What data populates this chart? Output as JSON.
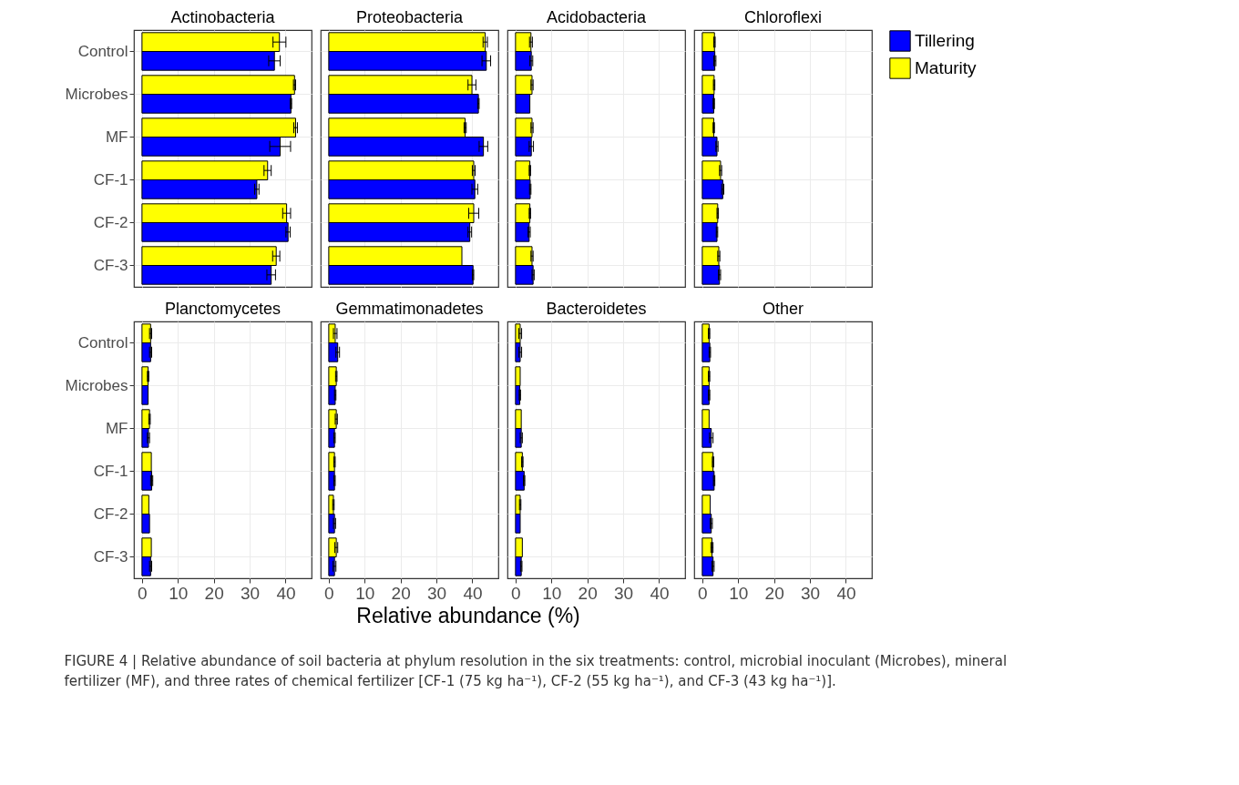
{
  "chart_data": [
    {
      "type": "bar",
      "orientation": "horizontal",
      "title": "Actinobacteria",
      "categories": [
        "Control",
        "Microbes",
        "MF",
        "CF-1",
        "CF-2",
        "CF-3"
      ],
      "xlim": [
        -2.25,
        47.25
      ],
      "xticks": [
        0,
        10,
        20,
        30,
        40
      ],
      "grid": true,
      "tick_labels": "y",
      "legend": "right",
      "annotations": [
        "FIGURE 4 | Relative abundance of soil bacteria at phylum resolution in the six treatments: control, microbial inoculant (Microbes), mineral fertilizer (MF), and three rates of chemical fertilizer [CF-1 (75 kg ha⁻¹), CF-2 (55 kg ha⁻¹), and CF-3 (43 kg ha⁻¹)]."
      ],
      "series": [
        {
          "name": "Tillering",
          "color": "#0000ff",
          "values": [
            36.9,
            41.5,
            38.5,
            32.0,
            40.7,
            36.0
          ],
          "errors": [
            1.6,
            0.2,
            2.9,
            0.6,
            0.6,
            1.2
          ]
        },
        {
          "name": "Maturity",
          "color": "#ffff00",
          "values": [
            38.3,
            42.5,
            42.8,
            35.0,
            40.3,
            37.4
          ],
          "errors": [
            1.8,
            0.3,
            0.5,
            1.0,
            1.1,
            1.0
          ]
        }
      ]
    },
    {
      "type": "bar",
      "orientation": "horizontal",
      "title": "Proteobacteria",
      "categories": [
        "Control",
        "Microbes",
        "MF",
        "CF-1",
        "CF-2",
        "CF-3"
      ],
      "xlim": [
        -2.25,
        47.25
      ],
      "xticks": [
        0,
        10,
        20,
        30,
        40
      ],
      "grid": true,
      "tick_labels": false,
      "legend": "right",
      "series": [
        {
          "name": "Tillering",
          "color": "#0000ff",
          "values": [
            43.9,
            41.7,
            43.1,
            40.7,
            39.3,
            40.2
          ],
          "errors": [
            1.2,
            0.2,
            1.2,
            0.8,
            0.5,
            0.2
          ]
        },
        {
          "name": "Maturity",
          "color": "#ffff00",
          "values": [
            43.6,
            39.9,
            38.0,
            40.4,
            40.4,
            37.1
          ],
          "errors": [
            0.6,
            1.1,
            0.3,
            0.4,
            1.4,
            null
          ]
        }
      ]
    },
    {
      "type": "bar",
      "orientation": "horizontal",
      "title": "Acidobacteria",
      "categories": [
        "Control",
        "Microbes",
        "MF",
        "CF-1",
        "CF-2",
        "CF-3"
      ],
      "xlim": [
        -2.25,
        47.25
      ],
      "xticks": [
        0,
        10,
        20,
        30,
        40
      ],
      "grid": true,
      "tick_labels": false,
      "legend": "right",
      "series": [
        {
          "name": "Tillering",
          "color": "#0000ff",
          "values": [
            4.4,
            4.0,
            4.4,
            4.1,
            3.8,
            4.9
          ],
          "errors": [
            0.4,
            null,
            0.6,
            0.2,
            0.3,
            0.3
          ]
        },
        {
          "name": "Maturity",
          "color": "#ffff00",
          "values": [
            4.3,
            4.6,
            4.6,
            4.0,
            4.0,
            4.6
          ],
          "errors": [
            0.4,
            0.3,
            0.3,
            0.2,
            0.2,
            0.3
          ]
        }
      ]
    },
    {
      "type": "bar",
      "orientation": "horizontal",
      "title": "Chloroflexi",
      "categories": [
        "Control",
        "Microbes",
        "MF",
        "CF-1",
        "CF-2",
        "CF-3"
      ],
      "xlim": [
        -2.25,
        47.25
      ],
      "xticks": [
        0,
        10,
        20,
        30,
        40
      ],
      "grid": true,
      "tick_labels": false,
      "legend": "right",
      "series": [
        {
          "name": "Tillering",
          "color": "#0000ff",
          "values": [
            3.5,
            3.2,
            4.1,
            5.7,
            4.1,
            4.8
          ],
          "errors": [
            0.3,
            0.2,
            0.3,
            0.3,
            0.2,
            0.3
          ]
        },
        {
          "name": "Maturity",
          "color": "#ffff00",
          "values": [
            3.4,
            3.3,
            3.2,
            5.1,
            4.3,
            4.6
          ],
          "errors": [
            0.2,
            0.2,
            0.2,
            0.3,
            0.2,
            0.3
          ]
        }
      ]
    },
    {
      "type": "bar",
      "orientation": "horizontal",
      "title": "Planctomycetes",
      "categories": [
        "Control",
        "Microbes",
        "MF",
        "CF-1",
        "CF-2",
        "CF-3"
      ],
      "xlim": [
        -2.25,
        47.25
      ],
      "xticks": [
        0,
        10,
        20,
        30,
        40
      ],
      "grid": true,
      "legend": "right",
      "series": [
        {
          "name": "Tillering",
          "color": "#0000ff",
          "values": [
            2.4,
            1.7,
            1.8,
            2.7,
            2.1,
            2.4
          ],
          "errors": [
            0.3,
            null,
            0.3,
            0.3,
            null,
            0.3
          ]
        },
        {
          "name": "Maturity",
          "color": "#ffff00",
          "values": [
            2.4,
            1.7,
            2.1,
            2.6,
            1.9,
            2.6
          ],
          "errors": [
            0.3,
            0.2,
            0.2,
            null,
            null,
            null
          ]
        }
      ]
    },
    {
      "type": "bar",
      "orientation": "horizontal",
      "title": "Gemmatimonadetes",
      "xlabel": "Relative abundance (%)",
      "categories": [
        "Control",
        "Microbes",
        "MF",
        "CF-1",
        "CF-2",
        "CF-3"
      ],
      "xlim": [
        -2.25,
        47.25
      ],
      "xticks": [
        0,
        10,
        20,
        30,
        40
      ],
      "grid": true,
      "tick_labels": "x",
      "legend": "right",
      "series": [
        {
          "name": "Tillering",
          "color": "#0000ff",
          "values": [
            2.5,
            1.8,
            1.6,
            1.6,
            1.6,
            1.6
          ],
          "errors": [
            0.5,
            0.2,
            0.2,
            0.2,
            0.3,
            0.4
          ]
        },
        {
          "name": "Maturity",
          "color": "#ffff00",
          "values": [
            1.8,
            2.1,
            2.1,
            1.6,
            1.3,
            2.1
          ],
          "errors": [
            0.5,
            0.2,
            0.3,
            0.2,
            0.2,
            0.4
          ]
        }
      ]
    },
    {
      "type": "bar",
      "orientation": "horizontal",
      "title": "Bacteroidetes",
      "categories": [
        "Control",
        "Microbes",
        "MF",
        "CF-1",
        "CF-2",
        "CF-3"
      ],
      "xlim": [
        -2.25,
        47.25
      ],
      "xticks": [
        0,
        10,
        20,
        30,
        40
      ],
      "grid": true,
      "tick_labels": "x",
      "legend": "right",
      "series": [
        {
          "name": "Tillering",
          "color": "#0000ff",
          "values": [
            1.3,
            1.2,
            1.6,
            2.4,
            1.3,
            1.6
          ],
          "errors": [
            0.4,
            0.2,
            0.3,
            0.2,
            null,
            0.2
          ]
        },
        {
          "name": "Maturity",
          "color": "#ffff00",
          "values": [
            1.3,
            1.3,
            1.6,
            1.9,
            1.3,
            1.9
          ],
          "errors": [
            0.4,
            null,
            null,
            0.2,
            0.2,
            null
          ]
        }
      ]
    },
    {
      "type": "bar",
      "orientation": "horizontal",
      "title": "Other",
      "categories": [
        "Control",
        "Microbes",
        "MF",
        "CF-1",
        "CF-2",
        "CF-3"
      ],
      "xlim": [
        -2.25,
        47.25
      ],
      "xticks": [
        0,
        10,
        20,
        30,
        40
      ],
      "grid": true,
      "tick_labels": "x",
      "legend": "right",
      "series": [
        {
          "name": "Tillering",
          "color": "#0000ff",
          "values": [
            2.1,
            1.9,
            2.5,
            3.3,
            2.5,
            3.0
          ],
          "errors": [
            0.2,
            0.2,
            0.5,
            0.2,
            0.3,
            0.3
          ]
        },
        {
          "name": "Maturity",
          "color": "#ffff00",
          "values": [
            1.9,
            1.9,
            1.9,
            3.0,
            2.2,
            2.7
          ],
          "errors": [
            0.2,
            0.2,
            null,
            0.2,
            null,
            0.3
          ]
        }
      ]
    }
  ]
}
